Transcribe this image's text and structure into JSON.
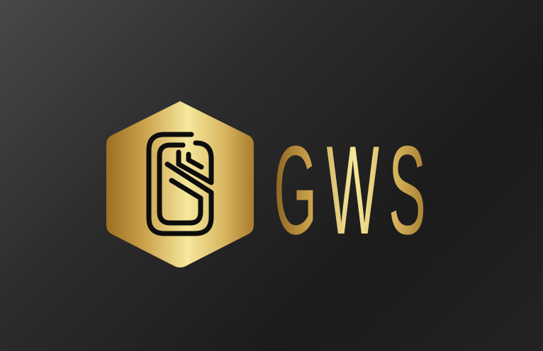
{
  "brand": {
    "wordmark": "GWS",
    "emblem_icon": "hexagon-g-monogram-icon"
  },
  "colors": {
    "background_light": "#484848",
    "background_dark": "#1b1b1b",
    "gold_light": "#f5e79a",
    "gold_mid": "#d9b45a",
    "gold_dark": "#8a6220",
    "monogram_stroke": "#0d0d0d"
  }
}
